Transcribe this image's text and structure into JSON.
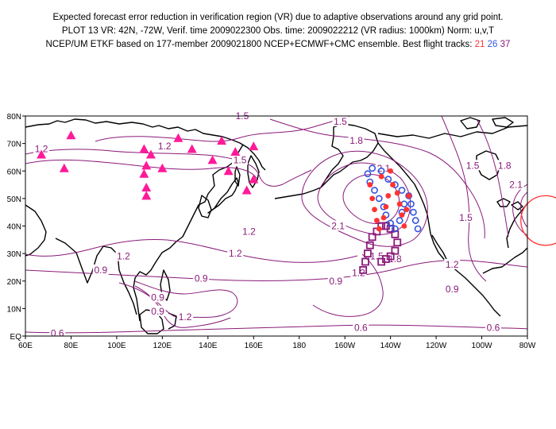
{
  "header": {
    "line1": "Expected forecast error reduction in verification region (VR) due to adaptive observations around any grid point.",
    "line2": "PLOT 13 VR: 42N, -72W, Verif. time 2009022300 Obs. time: 2009022212 (VR radius: 1000km) Norm: u,v,T",
    "line3_prefix": "NCEP/UM ETKF based on 177-member 2009021800 NCEP+ECMWF+CMC ensemble. Best flight tracks:",
    "track1": "21",
    "track2": "26",
    "track3": "37"
  },
  "map": {
    "lat_labels": [
      "80N",
      "70N",
      "60N",
      "50N",
      "40N",
      "30N",
      "20N",
      "10N",
      "EQ"
    ],
    "lon_labels": [
      "60E",
      "80E",
      "100E",
      "120E",
      "140E",
      "160E",
      "180",
      "160W",
      "140W",
      "120W",
      "100W",
      "80W"
    ],
    "contour_labels": [
      {
        "text": "1.5",
        "lon": 155,
        "lat": 80
      },
      {
        "text": "1.5",
        "lon": 198,
        "lat": 78
      },
      {
        "text": "1.8",
        "lon": 205,
        "lat": 71
      },
      {
        "text": "1.2",
        "lon": 67,
        "lat": 68
      },
      {
        "text": "1.2",
        "lon": 121,
        "lat": 69
      },
      {
        "text": "1.5",
        "lon": 154,
        "lat": 64
      },
      {
        "text": "2.1",
        "lon": 217,
        "lat": 61
      },
      {
        "text": "1.5",
        "lon": 256,
        "lat": 62
      },
      {
        "text": "1.8",
        "lon": 270,
        "lat": 62
      },
      {
        "text": "2.1",
        "lon": 275,
        "lat": 55
      },
      {
        "text": "1.5",
        "lon": 253,
        "lat": 43
      },
      {
        "text": "1.2",
        "lon": 158,
        "lat": 38
      },
      {
        "text": "2.1",
        "lon": 197,
        "lat": 40
      },
      {
        "text": "1.2",
        "lon": 103,
        "lat": 29
      },
      {
        "text": "1.2",
        "lon": 152,
        "lat": 30
      },
      {
        "text": "1.5",
        "lon": 214,
        "lat": 29
      },
      {
        "text": "1.8",
        "lon": 222,
        "lat": 28
      },
      {
        "text": "1.2",
        "lon": 247,
        "lat": 26
      },
      {
        "text": "0.9",
        "lon": 93,
        "lat": 24
      },
      {
        "text": "0.9",
        "lon": 137,
        "lat": 21
      },
      {
        "text": "1.2",
        "lon": 206,
        "lat": 23
      },
      {
        "text": "0.9",
        "lon": 196,
        "lat": 20
      },
      {
        "text": "0.9",
        "lon": 247,
        "lat": 17
      },
      {
        "text": "0.9",
        "lon": 118,
        "lat": 14
      },
      {
        "text": "0.9",
        "lon": 118,
        "lat": 9
      },
      {
        "text": "1.2",
        "lon": 130,
        "lat": 7
      },
      {
        "text": "0.6",
        "lon": 207,
        "lat": 3
      },
      {
        "text": "0.6",
        "lon": 265,
        "lat": 3
      },
      {
        "text": "0.6",
        "lon": 74,
        "lat": 1
      }
    ],
    "raob_stations": [
      {
        "lon": 67,
        "lat": 66
      },
      {
        "lon": 80,
        "lat": 73
      },
      {
        "lon": 77,
        "lat": 61
      },
      {
        "lon": 112,
        "lat": 68
      },
      {
        "lon": 115,
        "lat": 66
      },
      {
        "lon": 127,
        "lat": 72
      },
      {
        "lon": 133,
        "lat": 68
      },
      {
        "lon": 146,
        "lat": 71
      },
      {
        "lon": 152,
        "lat": 67
      },
      {
        "lon": 160,
        "lat": 69
      },
      {
        "lon": 142,
        "lat": 64
      },
      {
        "lon": 149,
        "lat": 60
      },
      {
        "lon": 113,
        "lat": 62
      },
      {
        "lon": 120,
        "lat": 61
      },
      {
        "lon": 112,
        "lat": 59
      },
      {
        "lon": 113,
        "lat": 54
      },
      {
        "lon": 113,
        "lat": 51
      },
      {
        "lon": 157,
        "lat": 53
      },
      {
        "lon": 160,
        "lat": 57
      }
    ],
    "track_red": [
      {
        "lon": 211,
        "lat": 55
      },
      {
        "lon": 212,
        "lat": 50
      },
      {
        "lon": 213,
        "lat": 46
      },
      {
        "lon": 214,
        "lat": 42
      },
      {
        "lon": 215,
        "lat": 39
      },
      {
        "lon": 217,
        "lat": 43
      },
      {
        "lon": 218,
        "lat": 47
      },
      {
        "lon": 219,
        "lat": 51
      },
      {
        "lon": 221,
        "lat": 55
      },
      {
        "lon": 223,
        "lat": 52
      },
      {
        "lon": 224,
        "lat": 48
      },
      {
        "lon": 225,
        "lat": 44
      },
      {
        "lon": 226,
        "lat": 40
      },
      {
        "lon": 227,
        "lat": 46
      },
      {
        "lon": 228,
        "lat": 51
      },
      {
        "lon": 216,
        "lat": 58
      },
      {
        "lon": 220,
        "lat": 60
      }
    ],
    "track_blue": [
      {
        "lon": 210,
        "lat": 59
      },
      {
        "lon": 211,
        "lat": 56
      },
      {
        "lon": 213,
        "lat": 53
      },
      {
        "lon": 215,
        "lat": 50
      },
      {
        "lon": 217,
        "lat": 47
      },
      {
        "lon": 218,
        "lat": 44
      },
      {
        "lon": 220,
        "lat": 41
      },
      {
        "lon": 222,
        "lat": 39
      },
      {
        "lon": 224,
        "lat": 42
      },
      {
        "lon": 225,
        "lat": 45
      },
      {
        "lon": 226,
        "lat": 48
      },
      {
        "lon": 228,
        "lat": 51
      },
      {
        "lon": 229,
        "lat": 48
      },
      {
        "lon": 230,
        "lat": 45
      },
      {
        "lon": 231,
        "lat": 42
      },
      {
        "lon": 232,
        "lat": 39
      },
      {
        "lon": 212,
        "lat": 61
      },
      {
        "lon": 216,
        "lat": 60
      },
      {
        "lon": 219,
        "lat": 57
      },
      {
        "lon": 222,
        "lat": 55
      },
      {
        "lon": 225,
        "lat": 53
      }
    ],
    "track_purple": [
      {
        "lon": 208,
        "lat": 24
      },
      {
        "lon": 209,
        "lat": 27
      },
      {
        "lon": 210,
        "lat": 30
      },
      {
        "lon": 211,
        "lat": 33
      },
      {
        "lon": 212,
        "lat": 36
      },
      {
        "lon": 214,
        "lat": 38
      },
      {
        "lon": 216,
        "lat": 40
      },
      {
        "lon": 218,
        "lat": 40
      },
      {
        "lon": 220,
        "lat": 39
      },
      {
        "lon": 222,
        "lat": 37
      },
      {
        "lon": 223,
        "lat": 34
      },
      {
        "lon": 222,
        "lat": 31
      },
      {
        "lon": 220,
        "lat": 29
      },
      {
        "lon": 218,
        "lat": 28
      },
      {
        "lon": 216,
        "lat": 27
      }
    ],
    "verification_region": {
      "lat": 42,
      "lon": 288,
      "radius_km": 1000
    },
    "colors": {
      "contour": "#8a1a7a",
      "coast": "#000000",
      "raob": "#ff1a99",
      "track_red": "#ff3333",
      "track_blue": "#3355dd",
      "track_purple": "#8a1a7a",
      "vr_circle": "#ff3333"
    }
  }
}
